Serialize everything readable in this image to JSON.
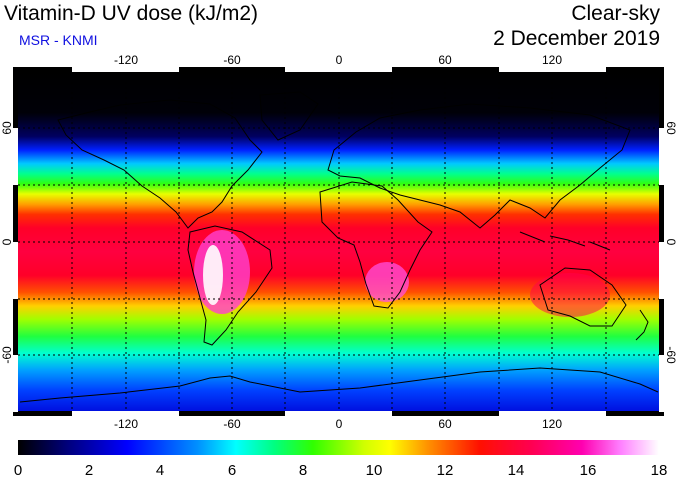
{
  "header": {
    "title": "Vitamin-D UV dose (kJ/m2)",
    "subtitle": "MSR - KNMI",
    "sky_condition": "Clear-sky",
    "date": "2 December 2019"
  },
  "map": {
    "longitude_ticks": [
      "-120",
      "-60",
      "0",
      "60",
      "120"
    ],
    "latitude_ticks": [
      "60",
      "0",
      "-60"
    ],
    "projection": "equirectangular",
    "gridlines": "dotted every 30 degrees"
  },
  "colorbar": {
    "labels": [
      "0",
      "2",
      "4",
      "6",
      "8",
      "10",
      "12",
      "14",
      "16",
      "18"
    ],
    "min": 0,
    "max": 18,
    "colors": [
      "#000000",
      "#0000a0",
      "#0000ff",
      "#0080ff",
      "#00ffff",
      "#00ff80",
      "#40ff00",
      "#c0ff00",
      "#ffff00",
      "#ffa000",
      "#ff2000",
      "#ff0040",
      "#ff0080",
      "#ff00c0",
      "#ff80ff",
      "#ffffff"
    ]
  }
}
